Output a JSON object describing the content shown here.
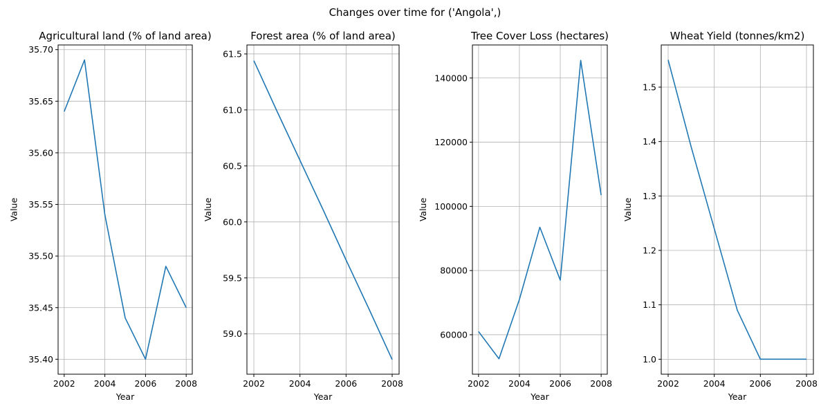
{
  "figure": {
    "suptitle": "Changes over time for ('Angola',)"
  },
  "chart_data": [
    {
      "type": "line",
      "title": "Agricultural land (% of land area)",
      "xlabel": "Year",
      "ylabel": "Value",
      "grid": true,
      "x": [
        2002,
        2003,
        2004,
        2005,
        2006,
        2007,
        2008
      ],
      "series": [
        {
          "values": [
            35.64,
            35.69,
            35.54,
            35.44,
            35.4,
            35.49,
            35.45
          ]
        }
      ],
      "xlim": [
        2001.7,
        2008.3
      ],
      "ylim": [
        35.3855,
        35.7045
      ],
      "xticks": [
        2002,
        2004,
        2006,
        2008
      ],
      "xtick_labels": [
        "2002",
        "2004",
        "2006",
        "2008"
      ],
      "yticks": [
        35.4,
        35.45,
        35.5,
        35.55,
        35.6,
        35.65,
        35.7
      ],
      "ytick_labels": [
        "35.40",
        "35.45",
        "35.50",
        "35.55",
        "35.60",
        "35.65",
        "35.70"
      ],
      "color": "#1f77b4"
    },
    {
      "type": "line",
      "title": "Forest area (% of land area)",
      "xlabel": "Year",
      "ylabel": "Value",
      "grid": true,
      "x": [
        2002,
        2003,
        2004,
        2005,
        2006,
        2007,
        2008
      ],
      "series": [
        {
          "values": [
            61.44,
            60.99,
            60.55,
            60.11,
            59.66,
            59.22,
            58.77
          ]
        }
      ],
      "xlim": [
        2001.7,
        2008.3
      ],
      "ylim": [
        58.64,
        61.58
      ],
      "xticks": [
        2002,
        2004,
        2006,
        2008
      ],
      "xtick_labels": [
        "2002",
        "2004",
        "2006",
        "2008"
      ],
      "yticks": [
        59.0,
        59.5,
        60.0,
        60.5,
        61.0,
        61.5
      ],
      "ytick_labels": [
        "59.0",
        "59.5",
        "60.0",
        "60.5",
        "61.0",
        "61.5"
      ],
      "color": "#1f77b4"
    },
    {
      "type": "line",
      "title": "Tree Cover Loss (hectares)",
      "xlabel": "Year",
      "ylabel": "Value",
      "grid": true,
      "x": [
        2002,
        2003,
        2004,
        2005,
        2006,
        2007,
        2008
      ],
      "series": [
        {
          "values": [
            61000,
            52500,
            71000,
            93500,
            77000,
            145500,
            103500
          ]
        }
      ],
      "xlim": [
        2001.7,
        2008.3
      ],
      "ylim": [
        47700,
        150300
      ],
      "xticks": [
        2002,
        2004,
        2006,
        2008
      ],
      "xtick_labels": [
        "2002",
        "2004",
        "2006",
        "2008"
      ],
      "yticks": [
        60000,
        80000,
        100000,
        120000,
        140000
      ],
      "ytick_labels": [
        "60000",
        "80000",
        "100000",
        "120000",
        "140000"
      ],
      "color": "#1f77b4"
    },
    {
      "type": "line",
      "title": "Wheat Yield (tonnes/km2)",
      "xlabel": "Year",
      "ylabel": "Value",
      "grid": true,
      "x": [
        2002,
        2003,
        2004,
        2005,
        2006,
        2007,
        2008
      ],
      "series": [
        {
          "values": [
            1.55,
            1.39,
            1.24,
            1.09,
            1.0,
            1.0,
            1.0
          ]
        }
      ],
      "xlim": [
        2001.7,
        2008.3
      ],
      "ylim": [
        0.9725,
        1.5775
      ],
      "xticks": [
        2002,
        2004,
        2006,
        2008
      ],
      "xtick_labels": [
        "2002",
        "2004",
        "2006",
        "2008"
      ],
      "yticks": [
        1.0,
        1.1,
        1.2,
        1.3,
        1.4,
        1.5
      ],
      "ytick_labels": [
        "1.0",
        "1.1",
        "1.2",
        "1.3",
        "1.4",
        "1.5"
      ],
      "color": "#1f77b4"
    }
  ]
}
